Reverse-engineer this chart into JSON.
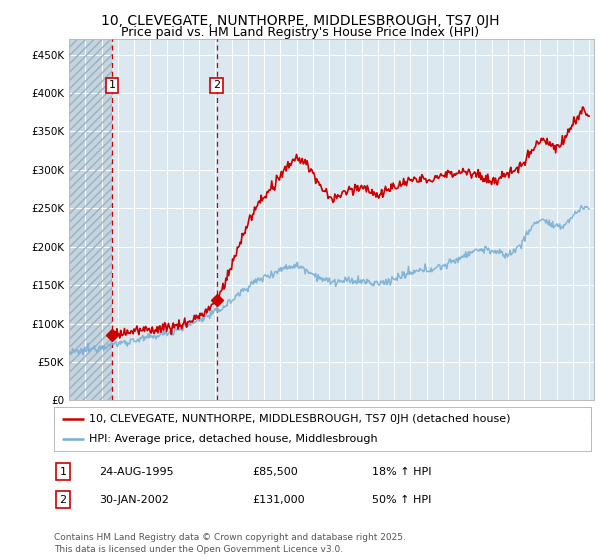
{
  "title": "10, CLEVEGATE, NUNTHORPE, MIDDLESBROUGH, TS7 0JH",
  "subtitle": "Price paid vs. HM Land Registry's House Price Index (HPI)",
  "legend_line1": "10, CLEVEGATE, NUNTHORPE, MIDDLESBROUGH, TS7 0JH (detached house)",
  "legend_line2": "HPI: Average price, detached house, Middlesbrough",
  "annotation1_label": "1",
  "annotation1_date": "24-AUG-1995",
  "annotation1_price": "£85,500",
  "annotation1_hpi": "18% ↑ HPI",
  "annotation2_label": "2",
  "annotation2_date": "30-JAN-2002",
  "annotation2_price": "£131,000",
  "annotation2_hpi": "50% ↑ HPI",
  "footer": "Contains HM Land Registry data © Crown copyright and database right 2025.\nThis data is licensed under the Open Government Licence v3.0.",
  "ylim": [
    0,
    470000
  ],
  "yticks": [
    0,
    50000,
    100000,
    150000,
    200000,
    250000,
    300000,
    350000,
    400000,
    450000
  ],
  "ytick_labels": [
    "£0",
    "£50K",
    "£100K",
    "£150K",
    "£200K",
    "£250K",
    "£300K",
    "£350K",
    "£400K",
    "£450K"
  ],
  "hatch_end_year": 1995.65,
  "sale1_x": 1995.65,
  "sale1_y": 85500,
  "sale2_x": 2002.08,
  "sale2_y": 131000,
  "property_color": "#cc0000",
  "hpi_color": "#7ab0d4",
  "marker_color": "#cc0000",
  "vline_color": "#cc0000",
  "background_color": "#ffffff",
  "plot_bg_color": "#dce8f0",
  "hatch_bg_color": "#c5d5e0",
  "grid_color": "#ffffff",
  "title_fontsize": 10,
  "subtitle_fontsize": 9,
  "tick_fontsize": 7.5,
  "legend_fontsize": 8,
  "annot_fontsize": 8,
  "footer_fontsize": 6.5,
  "xmin": 1993,
  "xmax": 2025.3,
  "hpi_key_years": [
    1993,
    1994,
    1995,
    1996,
    1997,
    1998,
    1999,
    2000,
    2001,
    2002,
    2003,
    2004,
    2005,
    2006,
    2007,
    2008,
    2009,
    2010,
    2011,
    2012,
    2013,
    2014,
    2015,
    2016,
    2017,
    2018,
    2019,
    2020,
    2021,
    2022,
    2023,
    2024,
    2025
  ],
  "hpi_key_vals": [
    62000,
    65000,
    70000,
    74000,
    78000,
    82000,
    88000,
    95000,
    105000,
    115000,
    130000,
    148000,
    160000,
    170000,
    175000,
    165000,
    155000,
    155000,
    155000,
    152000,
    158000,
    165000,
    170000,
    175000,
    185000,
    195000,
    195000,
    190000,
    210000,
    235000,
    225000,
    240000,
    250000
  ],
  "prop_key_years": [
    1995.65,
    1996,
    1997,
    1998,
    1999,
    2000,
    2001,
    2002.08,
    2003,
    2004,
    2005,
    2006,
    2007,
    2008,
    2009,
    2010,
    2011,
    2012,
    2013,
    2014,
    2015,
    2016,
    2017,
    2018,
    2019,
    2020,
    2021,
    2022,
    2023,
    2024,
    2025
  ],
  "prop_key_vals": [
    85500,
    87000,
    90000,
    92000,
    95000,
    99000,
    110000,
    131000,
    175000,
    230000,
    265000,
    290000,
    315000,
    295000,
    265000,
    270000,
    278000,
    268000,
    278000,
    285000,
    288000,
    292000,
    298000,
    295000,
    285000,
    295000,
    310000,
    340000,
    330000,
    360000,
    370000
  ]
}
